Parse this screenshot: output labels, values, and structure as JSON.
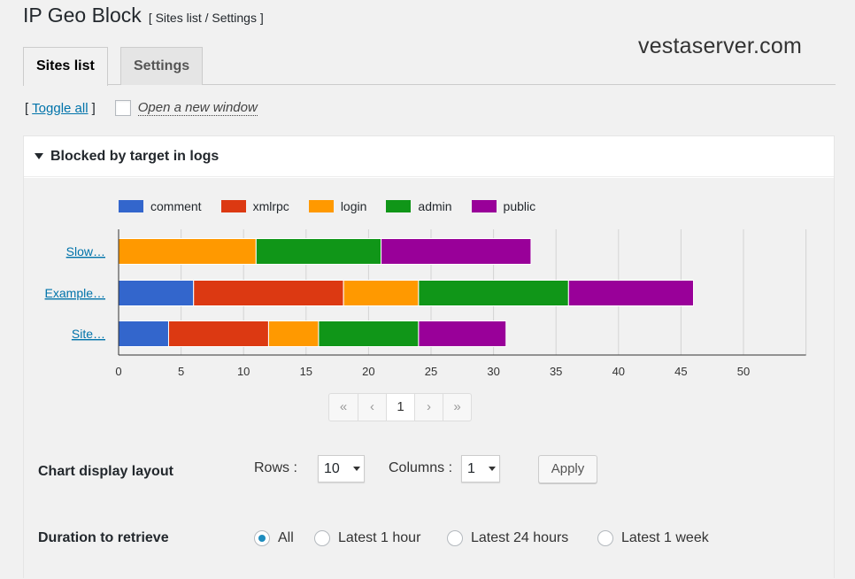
{
  "header": {
    "title": "IP Geo Block",
    "subtitle": "[ Sites list / Settings ]",
    "watermark": "vestaserver.com"
  },
  "tabs": [
    {
      "label": "Sites list",
      "active": true
    },
    {
      "label": "Settings",
      "active": false
    }
  ],
  "toggle": {
    "open_bracket": "[",
    "link": "Toggle all",
    "close_bracket": "]",
    "checkbox_label": "Open a new window",
    "checked": false
  },
  "panel": {
    "title": "Blocked by target in logs"
  },
  "chart_data": {
    "type": "bar",
    "orientation": "horizontal",
    "stacked": true,
    "title": "",
    "xlabel": "",
    "ylabel": "",
    "categories": [
      "Slow…",
      "Example…",
      "Site…"
    ],
    "series": [
      {
        "name": "comment",
        "color": "#3366cc",
        "values": [
          0,
          6,
          4
        ]
      },
      {
        "name": "xmlrpc",
        "color": "#dc3912",
        "values": [
          0,
          12,
          8
        ]
      },
      {
        "name": "login",
        "color": "#ff9900",
        "values": [
          11,
          6,
          4
        ]
      },
      {
        "name": "admin",
        "color": "#109618",
        "values": [
          10,
          12,
          8
        ]
      },
      {
        "name": "public",
        "color": "#990099",
        "values": [
          12,
          10,
          7
        ]
      }
    ],
    "xlim": [
      0,
      55
    ],
    "xticks": [
      0,
      5,
      10,
      15,
      20,
      25,
      30,
      35,
      40,
      45,
      50
    ],
    "legend": "top",
    "grid": true
  },
  "pager": {
    "first": "«",
    "prev": "‹",
    "current": "1",
    "next": "›",
    "last": "»"
  },
  "layout": {
    "label": "Chart display layout",
    "rows_label": "Rows :",
    "rows_value": "10",
    "columns_label": "Columns :",
    "columns_value": "1",
    "apply": "Apply"
  },
  "duration": {
    "label": "Duration to retrieve",
    "options": [
      "All",
      "Latest 1 hour",
      "Latest 24 hours",
      "Latest 1 week"
    ],
    "selected": "All"
  }
}
